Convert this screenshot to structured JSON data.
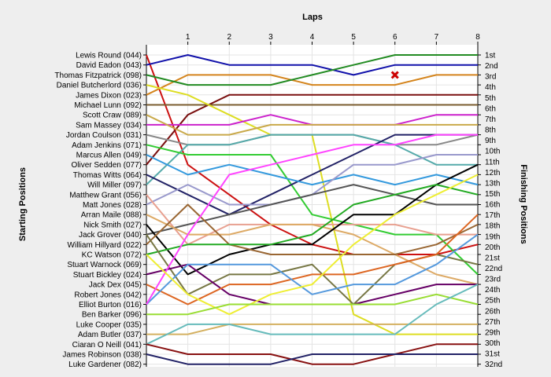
{
  "chart_data": {
    "type": "line",
    "title": "",
    "xlabel": "Laps",
    "ylabel_left": "Starting Positions",
    "ylabel_right": "Finishing Positions",
    "x_ticks": [
      1,
      2,
      3,
      4,
      5,
      6,
      7,
      8
    ],
    "xlim": [
      0,
      8
    ],
    "y_positions": 32,
    "grid": true,
    "start_labels": [
      "Lewis Round (044)",
      "David Eadon (043)",
      "Thomas Fitzpatrick (098)",
      "Daniel Butcherlord (036)",
      "James Dixon (023)",
      "Michael Lunn (092)",
      "Scott Craw (089)",
      "Sam Massey (034)",
      "Jordan Coulson (031)",
      "Adam Jenkins (071)",
      "Marcus Allen (049)",
      "Oliver Sedden (077)",
      "Thomas Witts (064)",
      "Will Miller (097)",
      "Matthew Grant (056)",
      "Matt Jones (028)",
      "Arran Maile (088)",
      "Nick Smith (027)",
      "Jack Grover (040)",
      "William Hillyard (022)",
      "KC Watson (072)",
      "Stuart Warnock (069)",
      "Stuart Bickley (024)",
      "Jack Dex (045)",
      "Robert Jones (042)",
      "Elliot Burton (016)",
      "Ben Barker (096)",
      "Luke Cooper (035)",
      "Adam Butler (037)",
      "Ciaran O Neill (041)",
      "James Robinson (038)",
      "Luke Gardener (082)"
    ],
    "finish_labels": [
      "1st",
      "2nd",
      "3rd",
      "4th",
      "5th",
      "6th",
      "7th",
      "8th",
      "9th",
      "10th",
      "11th",
      "12th",
      "13th",
      "15th",
      "16th",
      "17th",
      "18th",
      "19th",
      "20th",
      "21st",
      "22nd",
      "23rd",
      "24th",
      "25th",
      "26th",
      "27th",
      "29th",
      "30th",
      "31st",
      "32nd"
    ],
    "retired_marker": {
      "lap": 6,
      "position": 3,
      "color": "#cc0000"
    },
    "series": [
      {
        "color": "#cc1111",
        "values": [
          1,
          12,
          15,
          18,
          20,
          21,
          21,
          21,
          20
        ]
      },
      {
        "color": "#1111aa",
        "values": [
          2,
          1,
          2,
          2,
          2,
          3,
          2,
          2,
          2
        ]
      },
      {
        "color": "#d4841c",
        "values": [
          5,
          3,
          3,
          3,
          4,
          4,
          4,
          3,
          3
        ]
      },
      {
        "color": "#228b22",
        "values": [
          3,
          4,
          4,
          4,
          3,
          2,
          1,
          1,
          1
        ]
      },
      {
        "color": "#7a1010",
        "values": [
          12,
          7,
          5,
          5,
          5,
          5,
          5,
          5,
          5
        ]
      },
      {
        "color": "#7a5c2e",
        "values": [
          6,
          6,
          6,
          6,
          6,
          6,
          6,
          6,
          6
        ]
      },
      {
        "color": "#dddd22",
        "values": [
          4,
          5,
          7,
          9,
          9,
          27,
          29,
          29,
          29
        ]
      },
      {
        "color": "#cc22cc",
        "values": [
          8,
          8,
          8,
          7,
          8,
          8,
          8,
          7,
          7
        ]
      },
      {
        "color": "#888888",
        "values": [
          9,
          10,
          10,
          9,
          9,
          9,
          10,
          10,
          9
        ]
      },
      {
        "color": "#55aaaa",
        "values": [
          14,
          10,
          10,
          9,
          9,
          9,
          10,
          12,
          12
        ]
      },
      {
        "color": "#33cc33",
        "values": [
          10,
          11,
          11,
          11,
          17,
          18,
          19,
          19,
          23
        ]
      },
      {
        "color": "#c9a94a",
        "values": [
          7,
          9,
          9,
          8,
          8,
          8,
          8,
          8,
          8
        ]
      },
      {
        "color": "#222266",
        "values": [
          13,
          15,
          17,
          15,
          13,
          11,
          9,
          9,
          9
        ]
      },
      {
        "color": "#3399dd",
        "values": [
          11,
          13,
          12,
          13,
          14,
          13,
          14,
          13,
          14
        ]
      },
      {
        "color": "#9999cc",
        "values": [
          16,
          14,
          16,
          16,
          15,
          12,
          12,
          11,
          11
        ]
      },
      {
        "color": "#e8a090",
        "values": [
          15,
          20,
          18,
          18,
          18,
          18,
          18,
          19,
          19
        ]
      },
      {
        "color": "#555555",
        "values": [
          19,
          18,
          17,
          16,
          15,
          14,
          15,
          16,
          16
        ]
      },
      {
        "color": "#ddaa66",
        "values": [
          17,
          19,
          19,
          18,
          18,
          19,
          21,
          23,
          24
        ]
      },
      {
        "color": "#000000",
        "values": [
          18,
          23,
          21,
          20,
          20,
          17,
          17,
          14,
          12
        ]
      },
      {
        "color": "#996633",
        "values": [
          20,
          16,
          20,
          21,
          21,
          21,
          21,
          20,
          18
        ]
      },
      {
        "color": "#22aa22",
        "values": [
          21,
          20,
          20,
          20,
          19,
          16,
          15,
          14,
          15
        ]
      },
      {
        "color": "#777744",
        "values": [
          19,
          25,
          23,
          23,
          22,
          26,
          22,
          21,
          22
        ]
      },
      {
        "color": "#660066",
        "values": [
          23,
          22,
          25,
          26,
          26,
          26,
          25,
          24,
          24
        ]
      },
      {
        "color": "#dd6622",
        "values": [
          24,
          26,
          24,
          24,
          23,
          23,
          22,
          21,
          17
        ]
      },
      {
        "color": "#5599dd",
        "values": [
          26,
          22,
          22,
          22,
          25,
          24,
          24,
          22,
          19
        ]
      },
      {
        "color": "#ff44ff",
        "values": [
          26,
          19,
          13,
          12,
          11,
          10,
          10,
          9,
          9
        ]
      },
      {
        "color": "#eeee33",
        "values": [
          21,
          25,
          27,
          25,
          24,
          20,
          17,
          15,
          13
        ]
      },
      {
        "color": "#99dd33",
        "values": [
          27,
          27,
          26,
          26,
          26,
          26,
          26,
          25,
          26
        ]
      },
      {
        "color": "#d4b060",
        "values": [
          29,
          29,
          28,
          28,
          28,
          28,
          28,
          28,
          28
        ]
      },
      {
        "color": "#66bbbb",
        "values": [
          30,
          28,
          28,
          29,
          29,
          29,
          29,
          26,
          24
        ]
      },
      {
        "color": "#881111",
        "values": [
          30,
          31,
          31,
          31,
          32,
          32,
          31,
          30,
          30
        ]
      },
      {
        "color": "#222266",
        "values": [
          31,
          32,
          32,
          32,
          31,
          31,
          31,
          31,
          31
        ]
      }
    ]
  }
}
